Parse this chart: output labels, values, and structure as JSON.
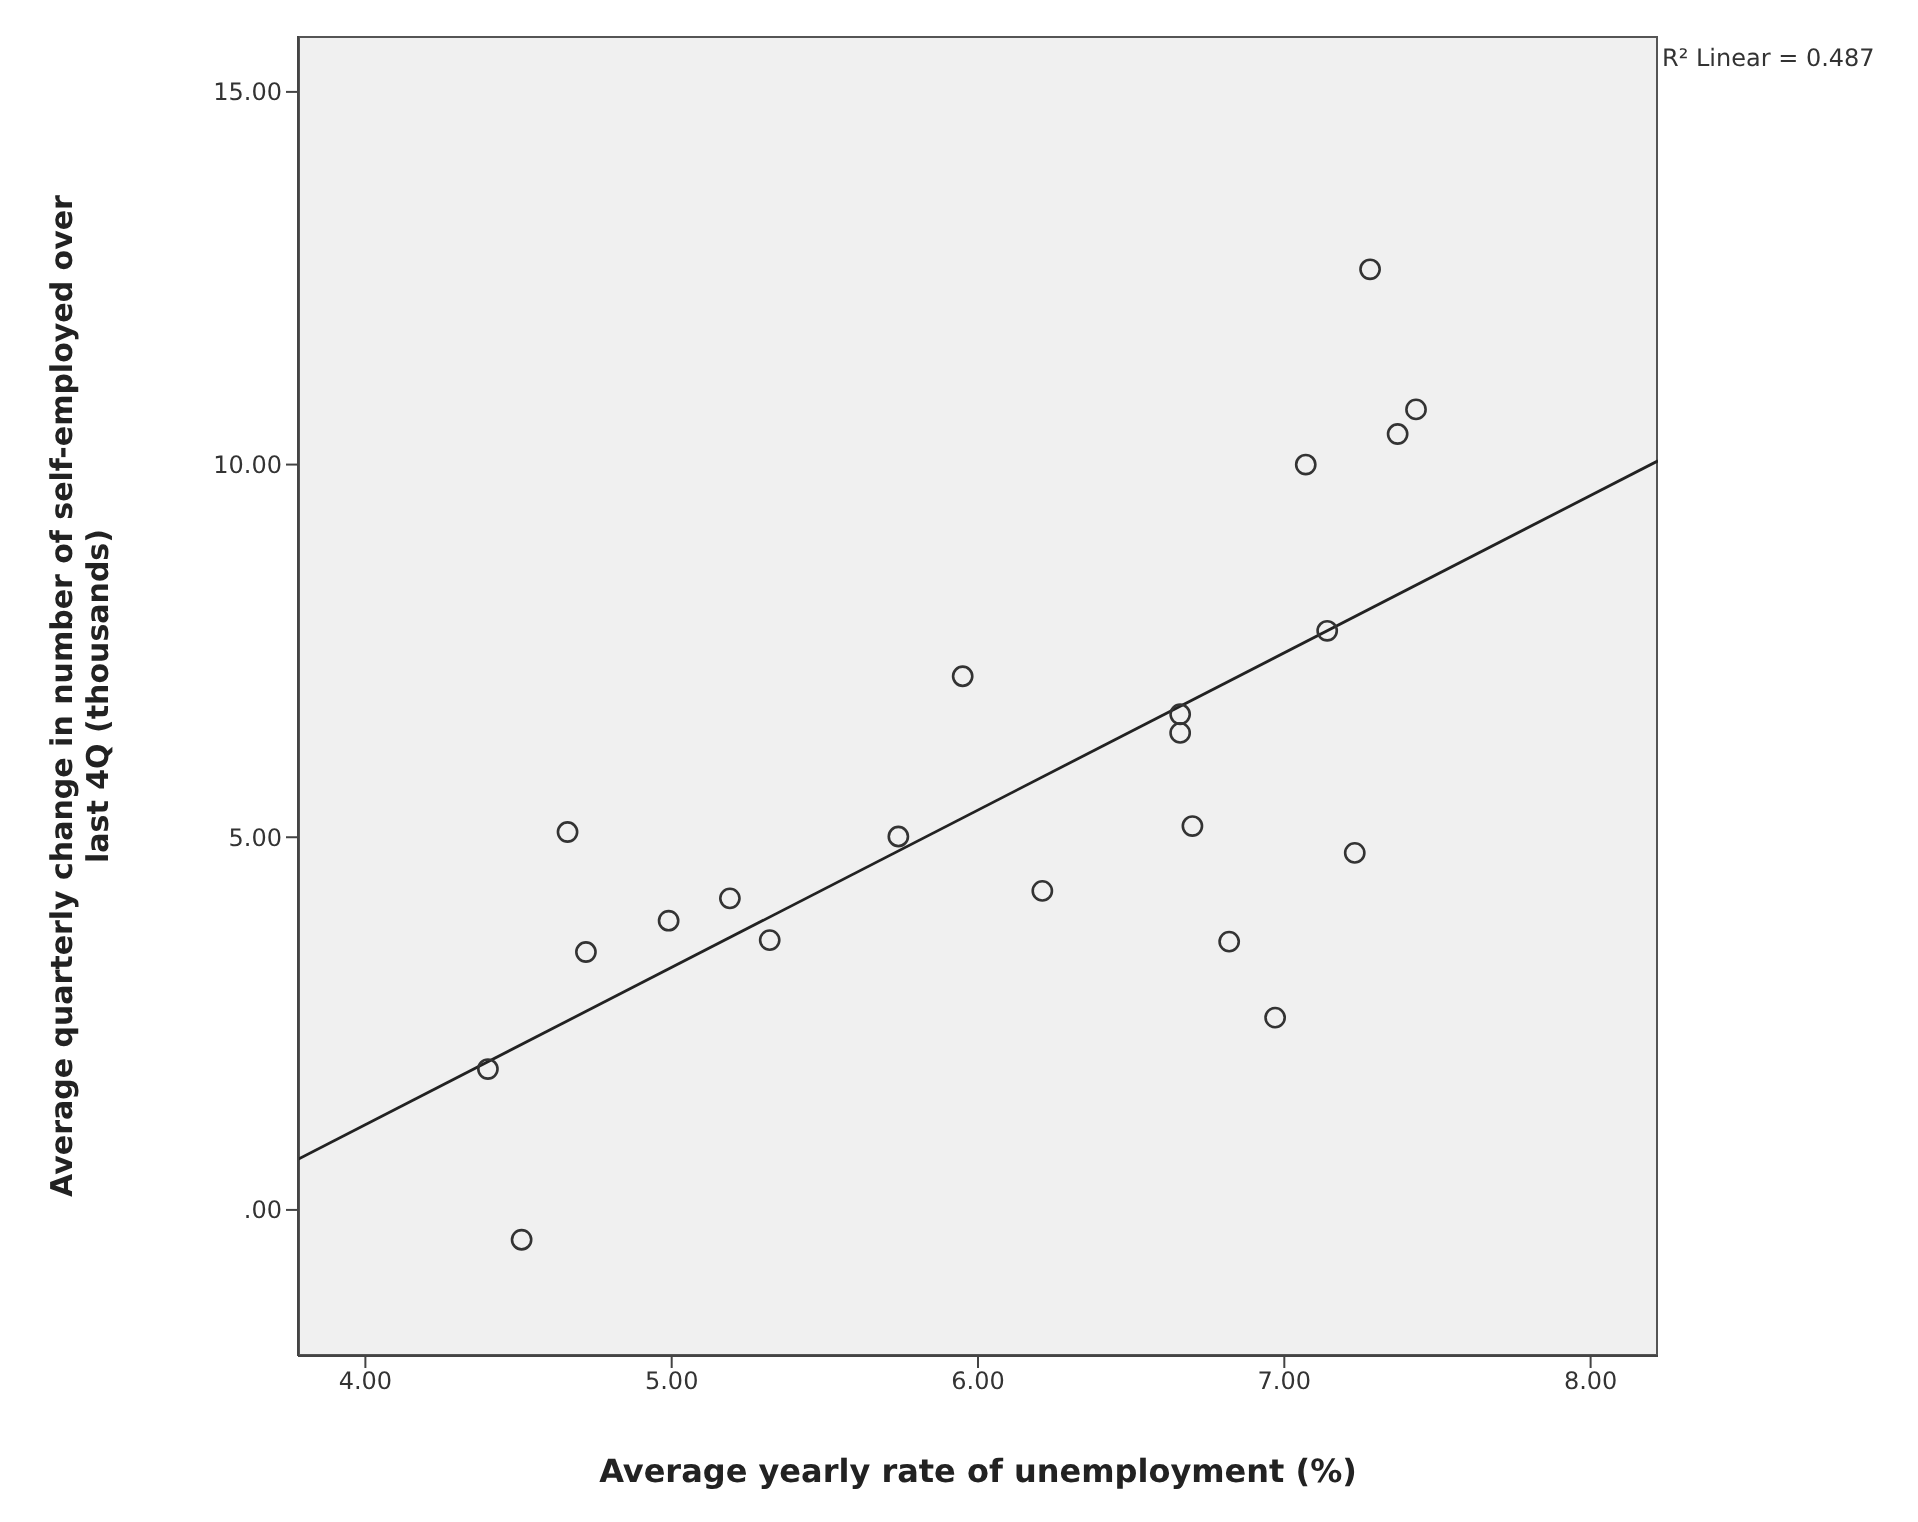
{
  "chart_data": {
    "type": "scatter",
    "xlabel": "Average yearly rate of unemployment (%)",
    "ylabel": "Average quarterly change in number of self-employed over last 4Q (thousands)",
    "annotations": [
      "R² Linear = 0.487"
    ],
    "xlim": [
      3.78,
      8.22
    ],
    "ylim": [
      -1.96,
      15.75
    ],
    "xticks": [
      {
        "value": 4,
        "label": "4.00"
      },
      {
        "value": 5,
        "label": "5.00"
      },
      {
        "value": 6,
        "label": "6.00"
      },
      {
        "value": 7,
        "label": "7.00"
      },
      {
        "value": 8,
        "label": "8.00"
      }
    ],
    "yticks": [
      {
        "value": 0,
        "label": ".00"
      },
      {
        "value": 5,
        "label": "5.00"
      },
      {
        "value": 10,
        "label": "10.00"
      },
      {
        "value": 15,
        "label": "15.00"
      }
    ],
    "marker": "circle",
    "series": [
      {
        "color": "#333333",
        "x": [
          4.4,
          4.51,
          4.66,
          4.72,
          4.99,
          5.19,
          5.32,
          5.74,
          5.95,
          6.21,
          6.66,
          6.66,
          6.7,
          6.82,
          6.97,
          7.07,
          7.14,
          7.23,
          7.28,
          7.37,
          7.43
        ],
        "values": [
          1.89,
          -0.4,
          5.07,
          3.46,
          3.88,
          4.18,
          3.62,
          5.01,
          7.16,
          4.28,
          6.65,
          6.4,
          5.15,
          3.6,
          2.58,
          10.0,
          7.77,
          4.79,
          12.62,
          10.41,
          10.74
        ]
      },
      {
        "type": "line",
        "color": "#222222",
        "x": [
          3.78,
          8.22
        ],
        "values": [
          0.68,
          10.05
        ],
        "marker": "none"
      }
    ]
  }
}
